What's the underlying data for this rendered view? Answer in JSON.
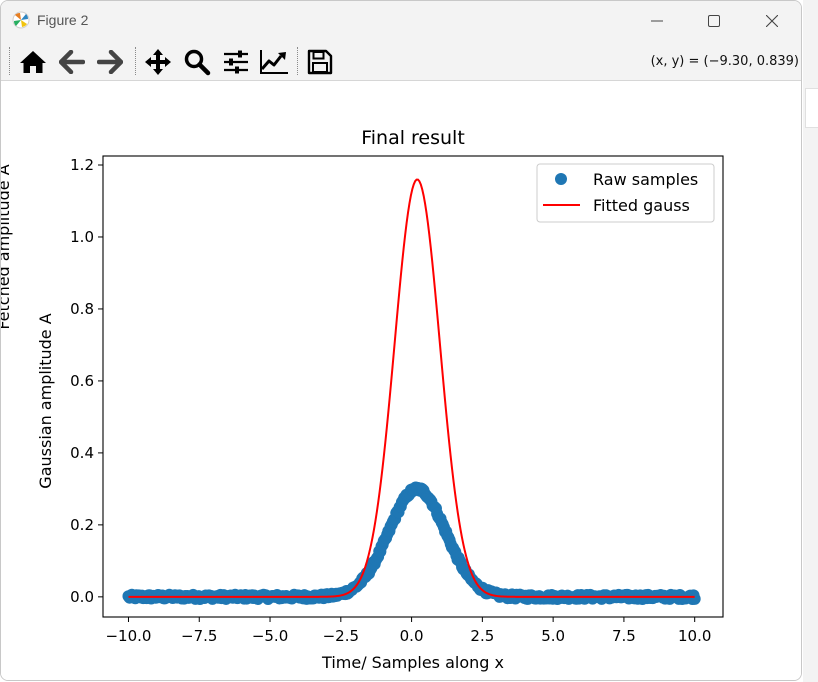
{
  "window": {
    "title": "Figure 2"
  },
  "toolbar": {
    "buttons": [
      "home-icon",
      "back-icon",
      "forward-icon",
      "pan-icon",
      "zoom-icon",
      "subplots-icon",
      "edit-axes-icon",
      "save-icon"
    ],
    "coords": "(x, y) = (−9.30, 0.839)"
  },
  "colors": {
    "samples": "#1f77b4",
    "fit": "#ff0000",
    "toolbar_bg": "#f3f3f3"
  },
  "clipped_label": "Fetched amplitude A",
  "chart_data": {
    "type": "scatter",
    "title": "Final result",
    "xlabel": "Time/ Samples along x",
    "ylabel": "Gaussian amplitude A",
    "xlim": [
      -10.9,
      11.0
    ],
    "ylim": [
      -0.056,
      1.225
    ],
    "xticks": [
      -10.0,
      -7.5,
      -5.0,
      -2.5,
      0.0,
      2.5,
      5.0,
      7.5,
      10.0
    ],
    "xtick_labels": [
      "−10.0",
      "−7.5",
      "−5.0",
      "−2.5",
      "0.0",
      "2.5",
      "5.0",
      "7.5",
      "10.0"
    ],
    "yticks": [
      0.0,
      0.2,
      0.4,
      0.6,
      0.8,
      1.0,
      1.2
    ],
    "ytick_labels": [
      "0.0",
      "0.2",
      "0.4",
      "0.6",
      "0.8",
      "1.0",
      "1.2"
    ],
    "legend_position": "upper right",
    "series": [
      {
        "name": "Raw samples",
        "kind": "scatter",
        "model": {
          "function": "gaussian",
          "amplitude": 0.3,
          "center": 0.2,
          "sigma": 1.0,
          "x_range": [
            -10,
            10
          ],
          "noise": 0.006
        }
      },
      {
        "name": "Fitted gauss",
        "kind": "line",
        "model": {
          "function": "gaussian",
          "amplitude": 1.16,
          "center": 0.2,
          "sigma": 0.8,
          "x_range": [
            -10,
            10
          ]
        }
      }
    ]
  }
}
